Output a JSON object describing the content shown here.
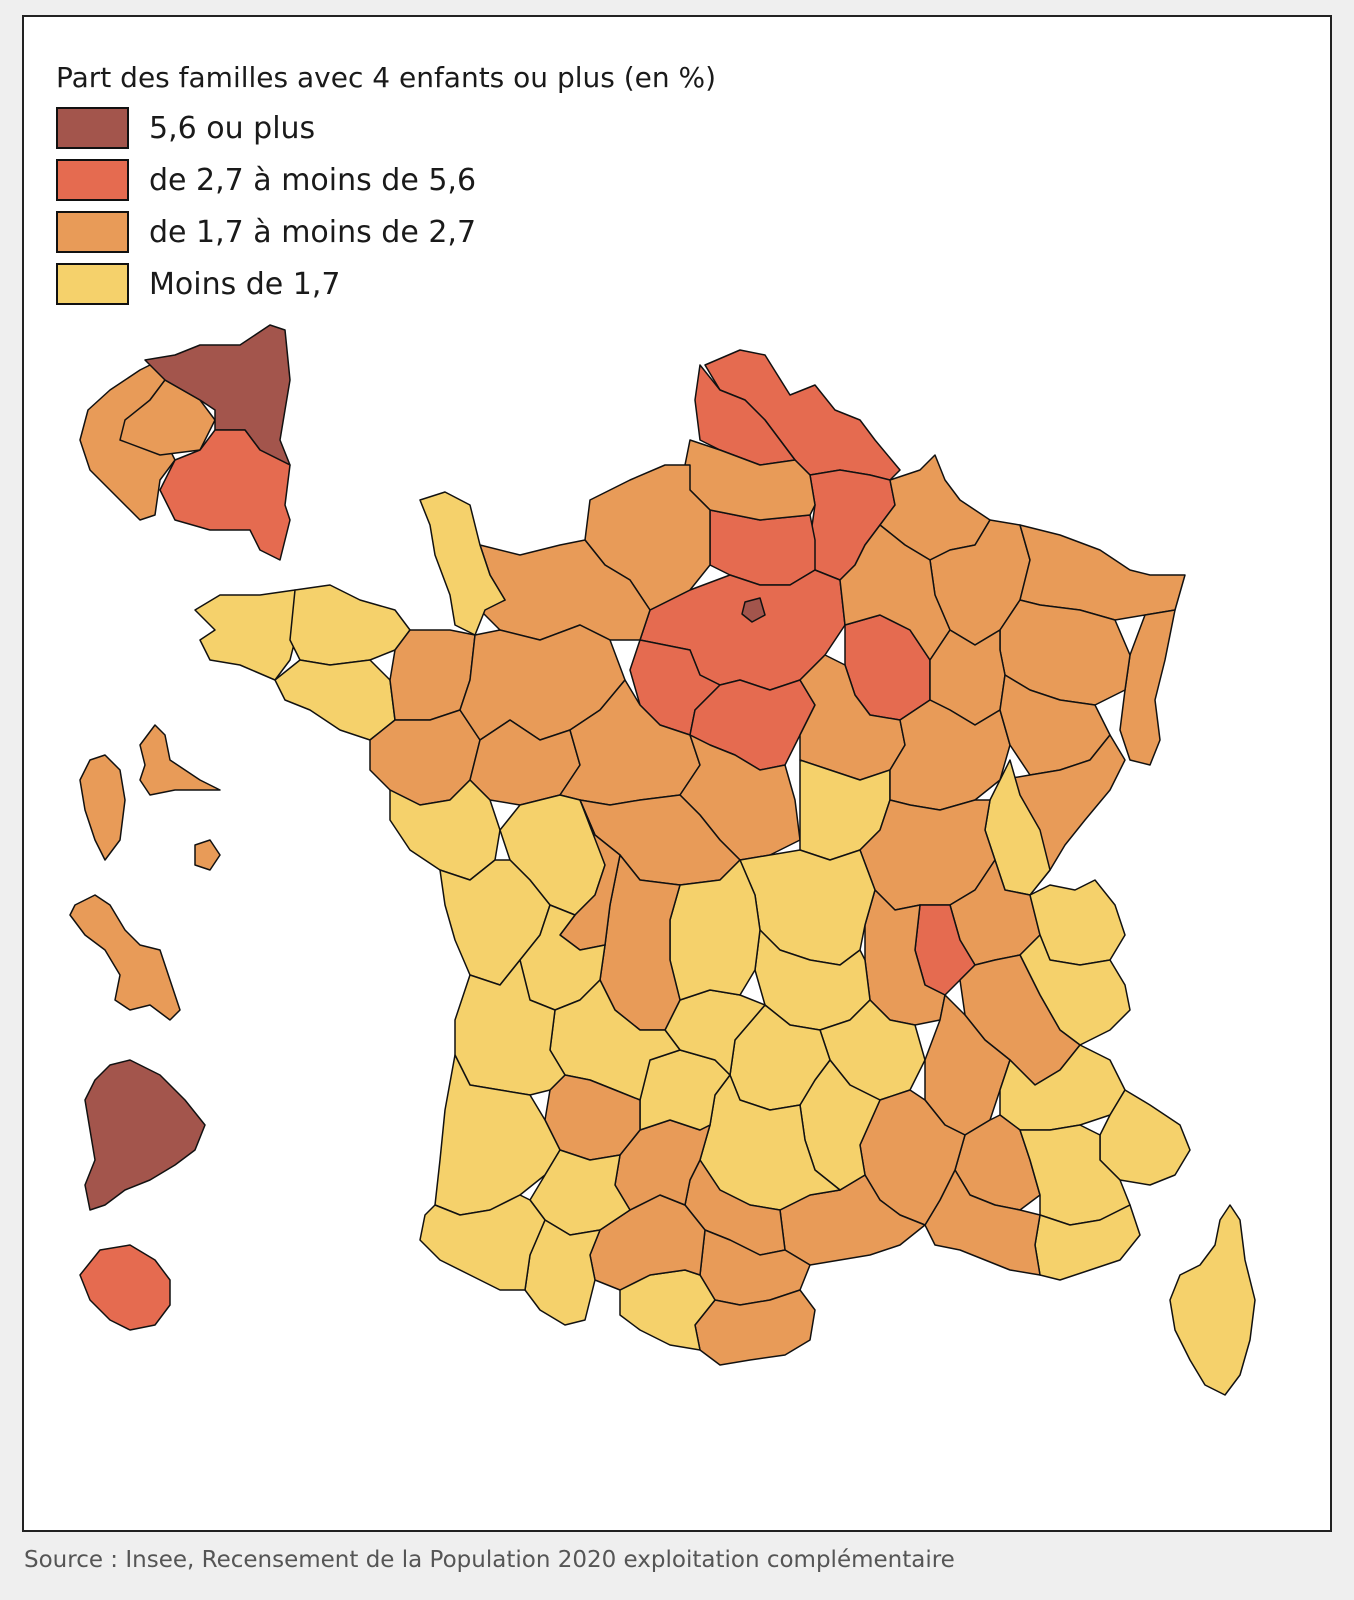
{
  "legend": {
    "title": "Part des familles avec 4 enfants ou plus (en %)",
    "classes": [
      {
        "label": "5,6 ou plus",
        "color": "#a3554c"
      },
      {
        "label": "de 2,7 à moins de 5,6",
        "color": "#e56b50"
      },
      {
        "label": "de 1,7 à moins de 2,7",
        "color": "#e89b58"
      },
      {
        "label": "Moins de 1,7",
        "color": "#f5d16b"
      }
    ]
  },
  "source": "Source : Insee, Recensement de la Population 2020 exploitation complémentaire"
}
